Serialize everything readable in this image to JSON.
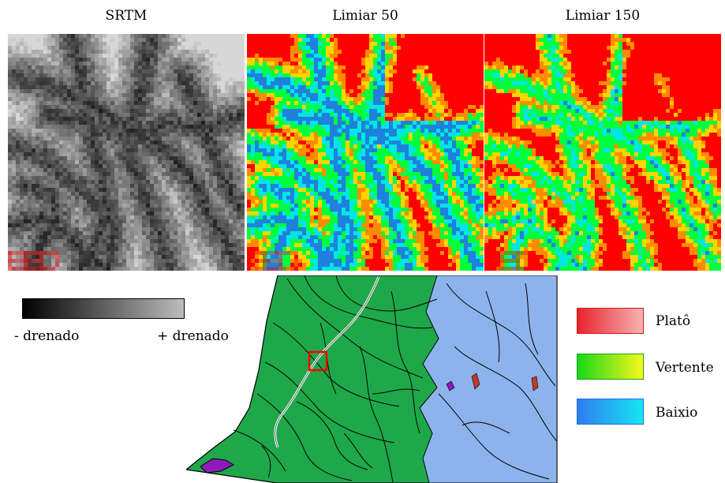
{
  "panels": [
    {
      "title": "SRTM",
      "kind": "srtm"
    },
    {
      "title": "Limiar 50",
      "kind": "class50"
    },
    {
      "title": "Limiar 150",
      "kind": "class150"
    }
  ],
  "drainage_scale": {
    "min_label": "- drenado",
    "max_label": "+ drenado",
    "from_color": "#000000",
    "to_color": "#bdbdbd"
  },
  "legend": [
    {
      "label": "Platô",
      "color_from": "#e8242c",
      "color_to": "#f6b3b3",
      "border": "#d21a1a"
    },
    {
      "label": "Vertente",
      "color_from": "#18d818",
      "color_to": "#f8f81a",
      "border": "#1aa01a"
    },
    {
      "label": "Baixio",
      "color_from": "#2f7cf0",
      "color_to": "#16e6f2",
      "border": "#1b6fd6"
    }
  ],
  "colors": {
    "plato": "#ff0000",
    "orange": "#ff8c00",
    "yellow": "#ffd400",
    "vertente": "#00ff3c",
    "cyan": "#00e6e6",
    "baixio": "#1e82dc",
    "map_green": "#1fa84a",
    "map_blue": "#8db3ec",
    "map_purple": "#8c1bb8",
    "highlight_box": "#ff0000"
  }
}
